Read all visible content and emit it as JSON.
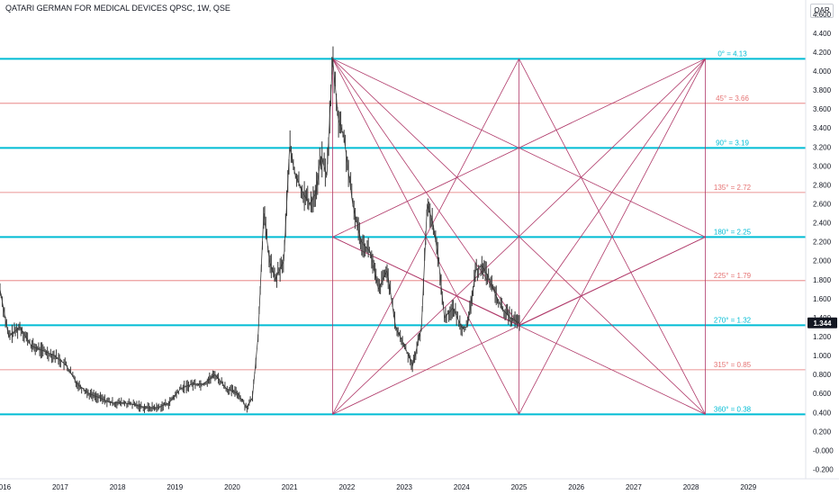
{
  "header": {
    "title": "QATARI GERMAN FOR MEDICAL DEVICES QPSC, 1W, QSE",
    "currency": "QAR"
  },
  "colors": {
    "major_level": "#00bcd4",
    "minor_level": "#e57373",
    "square_lines": "#b03a6a",
    "price_bars": "#3a3a3a",
    "price_label_bg": "#131722"
  },
  "chart_data": {
    "type": "line",
    "title": "QATARI GERMAN FOR MEDICAL DEVICES QPSC, 1W, QSE",
    "xlabel": "",
    "ylabel": "",
    "x_ticks": [
      "2016",
      "2017",
      "2018",
      "2019",
      "2020",
      "2021",
      "2022",
      "2023",
      "2024",
      "2025",
      "2026",
      "2027",
      "2028",
      "2029"
    ],
    "y_ticks": [
      "-0.200",
      "-0.000",
      "0.200",
      "0.400",
      "0.600",
      "0.800",
      "1.000",
      "1.200",
      "1.400",
      "1.600",
      "1.800",
      "2.000",
      "2.200",
      "2.400",
      "2.600",
      "2.800",
      "3.000",
      "3.200",
      "3.400",
      "3.600",
      "3.800",
      "4.000",
      "4.200",
      "4.400",
      "4.600"
    ],
    "ylim": [
      -0.3,
      4.75
    ],
    "xlim": [
      2015.95,
      2030.0
    ],
    "last_price": "1.344",
    "levels": [
      {
        "label": "0° = 4.13",
        "value": 4.13,
        "major": true
      },
      {
        "label": "45° = 3.66",
        "value": 3.66,
        "major": false
      },
      {
        "label": "90° = 3.19",
        "value": 3.19,
        "major": true
      },
      {
        "label": "135° = 2.72",
        "value": 2.72,
        "major": false
      },
      {
        "label": "180° = 2.25",
        "value": 2.25,
        "major": true
      },
      {
        "label": "225° = 1.79",
        "value": 1.79,
        "major": false
      },
      {
        "label": "270° = 1.32",
        "value": 1.32,
        "major": true
      },
      {
        "label": "315° = 0.85",
        "value": 0.85,
        "major": false
      },
      {
        "label": "360° = 0.38",
        "value": 0.38,
        "major": true
      }
    ],
    "square": {
      "x_start": 2021.75,
      "x_mid": 2025.0,
      "x_end": 2028.25
    },
    "series": [
      {
        "x": [
          2015.95,
          2016.1,
          2016.3,
          2016.5,
          2016.7,
          2016.9,
          2017.1,
          2017.3,
          2017.5,
          2017.7,
          2017.9,
          2018.1,
          2018.3,
          2018.5,
          2018.7,
          2018.9,
          2019.1,
          2019.3,
          2019.5,
          2019.7,
          2019.9,
          2020.1,
          2020.25,
          2020.35,
          2020.45,
          2020.55,
          2020.65,
          2020.75,
          2020.9,
          2021.0,
          2021.1,
          2021.25,
          2021.35,
          2021.45,
          2021.55,
          2021.65,
          2021.75,
          2021.85,
          2021.95,
          2022.1,
          2022.25,
          2022.4,
          2022.55,
          2022.7,
          2022.85,
          2023.0,
          2023.15,
          2023.3,
          2023.4,
          2023.5,
          2023.6,
          2023.7,
          2023.85,
          2024.0,
          2024.1,
          2024.25,
          2024.35,
          2024.45,
          2024.55,
          2024.7,
          2024.85,
          2025.0
        ],
        "y": [
          1.7,
          1.2,
          1.3,
          1.1,
          1.05,
          1.0,
          0.9,
          0.7,
          0.6,
          0.55,
          0.5,
          0.5,
          0.48,
          0.45,
          0.45,
          0.5,
          0.65,
          0.7,
          0.7,
          0.8,
          0.65,
          0.6,
          0.45,
          0.55,
          1.2,
          2.5,
          2.0,
          1.8,
          2.0,
          3.2,
          2.9,
          2.7,
          2.6,
          2.7,
          3.1,
          2.9,
          4.13,
          3.5,
          3.3,
          2.6,
          2.2,
          2.1,
          1.7,
          1.9,
          1.3,
          1.1,
          0.9,
          1.3,
          2.6,
          2.4,
          2.0,
          1.4,
          1.5,
          1.3,
          1.3,
          1.9,
          1.95,
          1.85,
          1.7,
          1.5,
          1.4,
          1.344
        ]
      }
    ]
  }
}
